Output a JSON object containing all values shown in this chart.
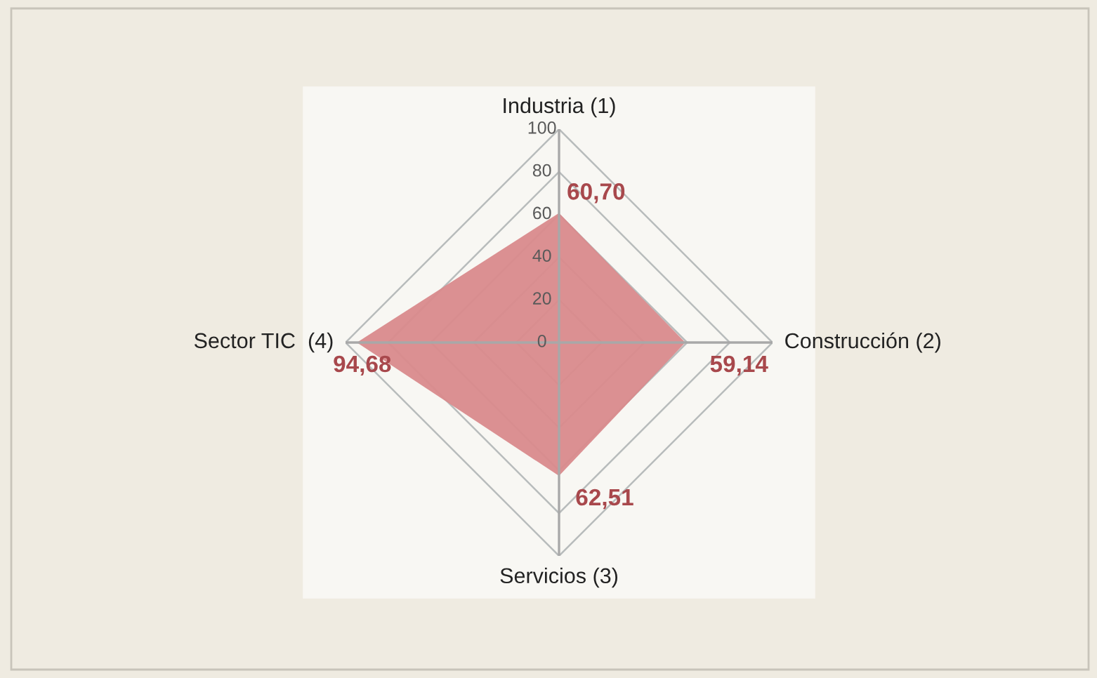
{
  "chart_data": {
    "type": "radar",
    "categories": [
      "Industria (1)",
      "Construcción (2)",
      "Servicios (3)",
      "Sector TIC  (4)"
    ],
    "series": [
      {
        "color": "#d98a8c",
        "values": [
          60.7,
          59.14,
          62.51,
          94.68
        ],
        "value_labels": [
          "60,70",
          "59,14",
          "62,51",
          "94,68"
        ]
      }
    ],
    "ylim": [
      0,
      100
    ],
    "yticks": [
      0,
      20,
      40,
      60,
      80,
      100
    ],
    "grid": true
  }
}
